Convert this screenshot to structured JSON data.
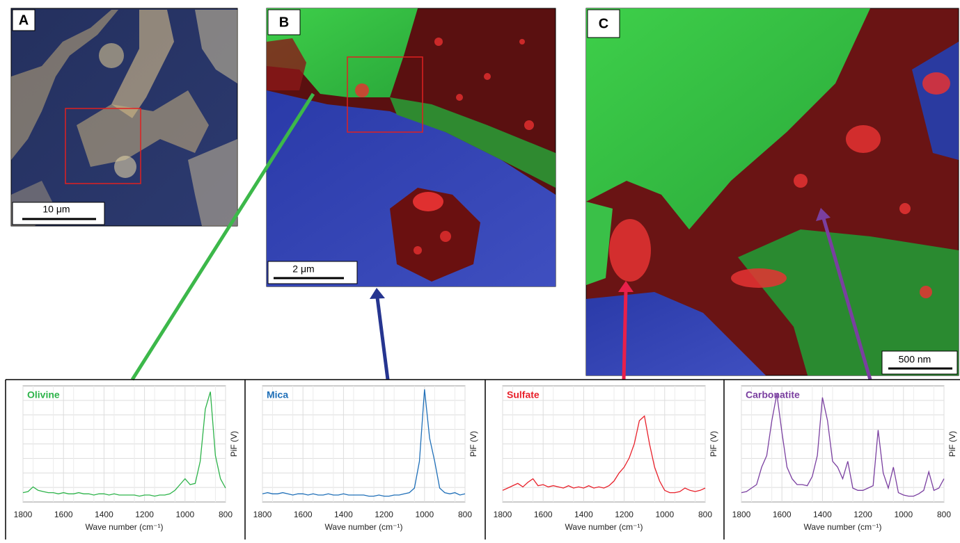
{
  "panels": [
    {
      "label": "A",
      "scale_bar": "10 μm"
    },
    {
      "label": "B",
      "scale_bar": "2 μm"
    },
    {
      "label": "C",
      "scale_bar": "500 nm"
    }
  ],
  "chart_data": [
    {
      "type": "line",
      "x_label": "Wave number (cm⁻¹)",
      "y_label": "PiF (V)",
      "xlim": [
        1800,
        800
      ],
      "xticks": [
        1800,
        1600,
        1400,
        1200,
        1000,
        800
      ],
      "ylim": [
        0,
        1
      ],
      "grid": true,
      "x": [
        1800,
        1775,
        1750,
        1725,
        1700,
        1675,
        1650,
        1625,
        1600,
        1575,
        1550,
        1525,
        1500,
        1475,
        1450,
        1425,
        1400,
        1375,
        1350,
        1325,
        1300,
        1275,
        1250,
        1225,
        1200,
        1175,
        1150,
        1125,
        1100,
        1075,
        1050,
        1025,
        1000,
        975,
        950,
        925,
        900,
        875,
        850,
        825,
        800
      ],
      "series": [
        {
          "name": "Olivine",
          "color": "#2db34a",
          "values": [
            0.08,
            0.09,
            0.13,
            0.1,
            0.09,
            0.08,
            0.08,
            0.07,
            0.08,
            0.07,
            0.07,
            0.08,
            0.07,
            0.07,
            0.06,
            0.07,
            0.07,
            0.06,
            0.07,
            0.06,
            0.06,
            0.06,
            0.06,
            0.05,
            0.06,
            0.06,
            0.05,
            0.06,
            0.06,
            0.07,
            0.1,
            0.15,
            0.2,
            0.15,
            0.16,
            0.35,
            0.8,
            0.95,
            0.4,
            0.2,
            0.12
          ]
        }
      ]
    },
    {
      "type": "line",
      "x_label": "Wave number (cm⁻¹)",
      "y_label": "PiF (V)",
      "xlim": [
        1800,
        800
      ],
      "xticks": [
        1800,
        1600,
        1400,
        1200,
        1000,
        800
      ],
      "ylim": [
        0,
        1
      ],
      "grid": true,
      "x": [
        1800,
        1775,
        1750,
        1725,
        1700,
        1675,
        1650,
        1625,
        1600,
        1575,
        1550,
        1525,
        1500,
        1475,
        1450,
        1425,
        1400,
        1375,
        1350,
        1325,
        1300,
        1275,
        1250,
        1225,
        1200,
        1175,
        1150,
        1125,
        1100,
        1075,
        1050,
        1025,
        1000,
        975,
        950,
        925,
        900,
        875,
        850,
        825,
        800
      ],
      "series": [
        {
          "name": "Mica",
          "color": "#1f6fb8",
          "values": [
            0.07,
            0.08,
            0.07,
            0.07,
            0.08,
            0.07,
            0.06,
            0.07,
            0.07,
            0.06,
            0.07,
            0.06,
            0.06,
            0.07,
            0.06,
            0.06,
            0.07,
            0.06,
            0.06,
            0.06,
            0.06,
            0.05,
            0.05,
            0.06,
            0.05,
            0.05,
            0.06,
            0.06,
            0.07,
            0.08,
            0.12,
            0.35,
            0.97,
            0.55,
            0.35,
            0.12,
            0.08,
            0.07,
            0.08,
            0.06,
            0.07
          ]
        }
      ]
    },
    {
      "type": "line",
      "x_label": "Wave number (cm⁻¹)",
      "y_label": "PiF (V)",
      "xlim": [
        1800,
        800
      ],
      "xticks": [
        1800,
        1600,
        1400,
        1200,
        1000,
        800
      ],
      "ylim": [
        0,
        1
      ],
      "grid": true,
      "x": [
        1800,
        1775,
        1750,
        1725,
        1700,
        1675,
        1650,
        1625,
        1600,
        1575,
        1550,
        1525,
        1500,
        1475,
        1450,
        1425,
        1400,
        1375,
        1350,
        1325,
        1300,
        1275,
        1250,
        1225,
        1200,
        1175,
        1150,
        1125,
        1100,
        1075,
        1050,
        1025,
        1000,
        975,
        950,
        925,
        900,
        875,
        850,
        825,
        800
      ],
      "series": [
        {
          "name": "Sulfate",
          "color": "#e8202a",
          "values": [
            0.1,
            0.12,
            0.14,
            0.16,
            0.13,
            0.17,
            0.2,
            0.14,
            0.15,
            0.13,
            0.14,
            0.13,
            0.12,
            0.14,
            0.12,
            0.13,
            0.12,
            0.14,
            0.12,
            0.13,
            0.12,
            0.14,
            0.18,
            0.25,
            0.3,
            0.38,
            0.5,
            0.7,
            0.74,
            0.5,
            0.3,
            0.18,
            0.1,
            0.08,
            0.08,
            0.09,
            0.12,
            0.1,
            0.09,
            0.1,
            0.12
          ]
        }
      ]
    },
    {
      "type": "line",
      "x_label": "Wave number (cm⁻¹)",
      "y_label": "PiF (V)",
      "xlim": [
        1800,
        800
      ],
      "xticks": [
        1800,
        1600,
        1400,
        1200,
        1000,
        800
      ],
      "ylim": [
        0,
        1
      ],
      "grid": true,
      "x": [
        1800,
        1775,
        1750,
        1725,
        1700,
        1675,
        1650,
        1625,
        1600,
        1575,
        1550,
        1525,
        1500,
        1475,
        1450,
        1425,
        1400,
        1375,
        1350,
        1325,
        1300,
        1275,
        1250,
        1225,
        1200,
        1175,
        1150,
        1125,
        1100,
        1075,
        1050,
        1025,
        1000,
        975,
        950,
        925,
        900,
        875,
        850,
        825,
        800
      ],
      "series": [
        {
          "name": "Carbonatite",
          "color": "#7a3fa0",
          "values": [
            0.08,
            0.09,
            0.12,
            0.15,
            0.3,
            0.4,
            0.7,
            0.93,
            0.6,
            0.3,
            0.2,
            0.15,
            0.15,
            0.14,
            0.22,
            0.4,
            0.9,
            0.7,
            0.35,
            0.3,
            0.2,
            0.35,
            0.12,
            0.1,
            0.1,
            0.12,
            0.14,
            0.62,
            0.25,
            0.12,
            0.3,
            0.08,
            0.06,
            0.05,
            0.05,
            0.07,
            0.1,
            0.26,
            0.1,
            0.12,
            0.2
          ]
        }
      ]
    }
  ]
}
